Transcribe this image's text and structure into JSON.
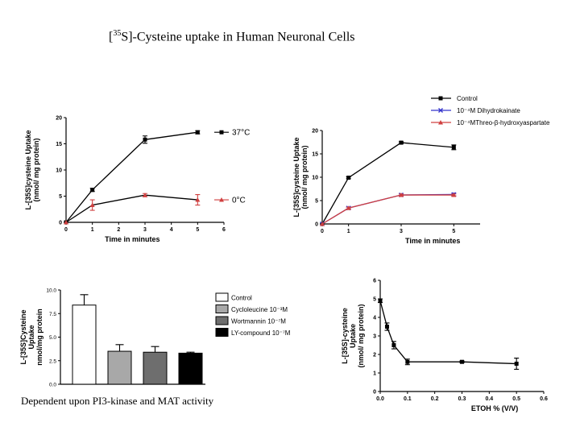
{
  "page": {
    "title_prefix": "[",
    "title_sup": "35",
    "title_rest": "S]-Cysteine uptake in Human Neuronal Cells",
    "caption": "Dependent upon PI3-kinase and MAT activity"
  },
  "chart_data": [
    {
      "type": "line",
      "id": "temp",
      "ylabel_lines": [
        "L-[35S]cysteine Uptake",
        "(nmol/ mg protein)"
      ],
      "xlabel": "Time in minutes",
      "xlim": [
        0,
        6
      ],
      "ylim": [
        0,
        20
      ],
      "xticks": [
        0,
        1,
        2,
        3,
        4,
        5,
        6
      ],
      "yticks": [
        0,
        5,
        10,
        15,
        20
      ],
      "series": [
        {
          "name": "37°C",
          "x": [
            0,
            1,
            3,
            5
          ],
          "y": [
            0,
            6.2,
            15.8,
            17.2
          ],
          "err": [
            0,
            0.3,
            0.7,
            0.3
          ],
          "color": "#000000",
          "marker": "square"
        },
        {
          "name": "0°C",
          "x": [
            0,
            1,
            3,
            5
          ],
          "y": [
            0,
            3.3,
            5.2,
            4.3
          ],
          "err": [
            0,
            1.0,
            0.3,
            1.0
          ],
          "color": "#000000",
          "err_color": "#d04040",
          "marker": "triangle"
        }
      ]
    },
    {
      "type": "line",
      "id": "inhib",
      "ylabel_lines": [
        "L-[35S]cysteine Uptake",
        "(nmol/ mg protein)"
      ],
      "xlabel": "Time in minutes",
      "xlim": [
        0,
        6
      ],
      "ylim": [
        0,
        20
      ],
      "xticks": [
        0,
        1,
        3,
        5
      ],
      "yticks": [
        0,
        5,
        10,
        15,
        20
      ],
      "legend": [
        "Control",
        "10⁻⁴M Dihydrokainate",
        "10⁻⁴MThreo-β-hydroxyaspartate"
      ],
      "series": [
        {
          "name": "Control",
          "x": [
            0,
            1,
            3,
            5
          ],
          "y": [
            0,
            9.9,
            17.4,
            16.4
          ],
          "err": [
            0,
            0.2,
            0.2,
            0.5
          ],
          "color": "#000000",
          "marker": "square"
        },
        {
          "name": "10⁻⁴M Dihydrokainate",
          "x": [
            0,
            1,
            3,
            5
          ],
          "y": [
            0,
            3.4,
            6.2,
            6.3
          ],
          "err": [
            0,
            0.2,
            0.2,
            0.3
          ],
          "color": "#3333cc",
          "marker": "x"
        },
        {
          "name": "10⁻⁴MThreo-β-hydroxyaspartate",
          "x": [
            0,
            1,
            3,
            5
          ],
          "y": [
            0,
            3.4,
            6.2,
            6.2
          ],
          "err": [
            0,
            0.2,
            0.2,
            0.2
          ],
          "color": "#d04040",
          "marker": "triangle"
        }
      ]
    },
    {
      "type": "bar",
      "id": "pi3k",
      "ylabel_lines": [
        "L-[35S]Cysteine",
        "Uptake",
        "nmol/mg protein"
      ],
      "ylim": [
        0,
        10
      ],
      "yticks": [
        "0.0",
        "2.5",
        "5.0",
        "7.5",
        "10.0"
      ],
      "categories": [
        "Control",
        "Cycloleucine 10⁻³M",
        "Wortmannin 10⁻⁷M",
        "LY-compound 10⁻⁷M"
      ],
      "values": [
        8.4,
        3.5,
        3.4,
        3.3
      ],
      "errors": [
        1.1,
        0.7,
        0.6,
        0.1
      ],
      "colors": [
        "#ffffff",
        "#a8a8a8",
        "#6e6e6e",
        "#000000"
      ]
    },
    {
      "type": "line",
      "id": "ethanol",
      "ylabel_lines": [
        "L-[35S]-cysteine",
        "Uptake",
        "(nmol/ mg protein)"
      ],
      "xlabel": "ETOH % (V/V)",
      "xlim": [
        0,
        0.6
      ],
      "ylim": [
        0,
        6
      ],
      "xticks": [
        "0.0",
        "0.1",
        "0.2",
        "0.3",
        "0.4",
        "0.5",
        "0.6"
      ],
      "yticks": [
        0,
        1,
        2,
        3,
        4,
        5,
        6
      ],
      "series": [
        {
          "name": "Ethanol",
          "x": [
            0,
            0.025,
            0.05,
            0.1,
            0.3,
            0.5
          ],
          "y": [
            4.9,
            3.5,
            2.5,
            1.6,
            1.6,
            1.5
          ],
          "err": [
            0.1,
            0.2,
            0.2,
            0.15,
            0.05,
            0.3
          ],
          "color": "#000000",
          "marker": "square"
        }
      ]
    }
  ]
}
